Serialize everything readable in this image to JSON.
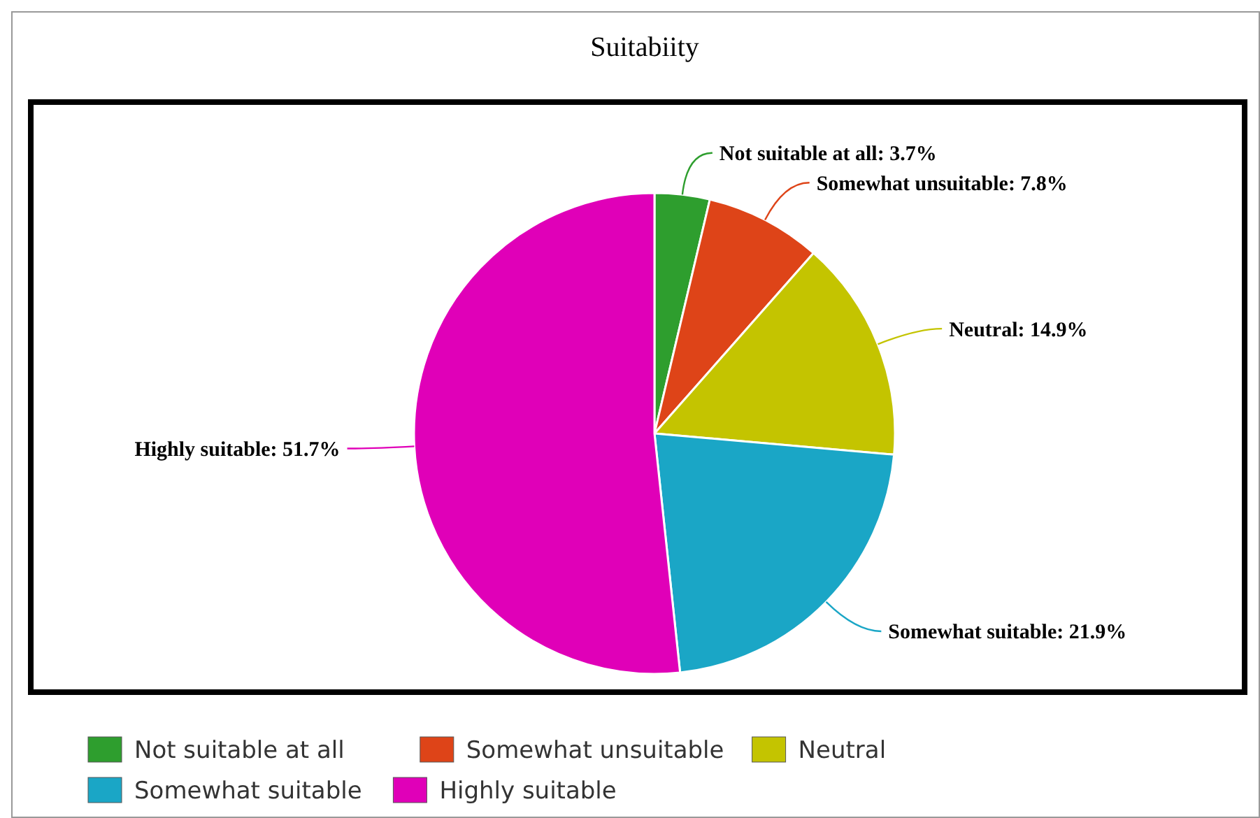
{
  "chart_data": {
    "type": "pie",
    "title": "Suitabiity",
    "categories": [
      "Not suitable at all",
      "Somewhat unsuitable",
      "Neutral",
      "Somewhat suitable",
      "Highly suitable"
    ],
    "values": [
      3.7,
      7.8,
      14.9,
      21.9,
      51.7
    ],
    "colors": [
      "#2e9e2e",
      "#de4418",
      "#c4c400",
      "#1aa6c6",
      "#e000b8"
    ],
    "value_labels": [
      "Not suitable at all: 3.7%",
      "Somewhat unsuitable: 7.8%",
      "Neutral: 14.9%",
      "Somewhat suitable: 21.9%",
      "Highly suitable: 51.7%"
    ],
    "legend": "bottom"
  }
}
